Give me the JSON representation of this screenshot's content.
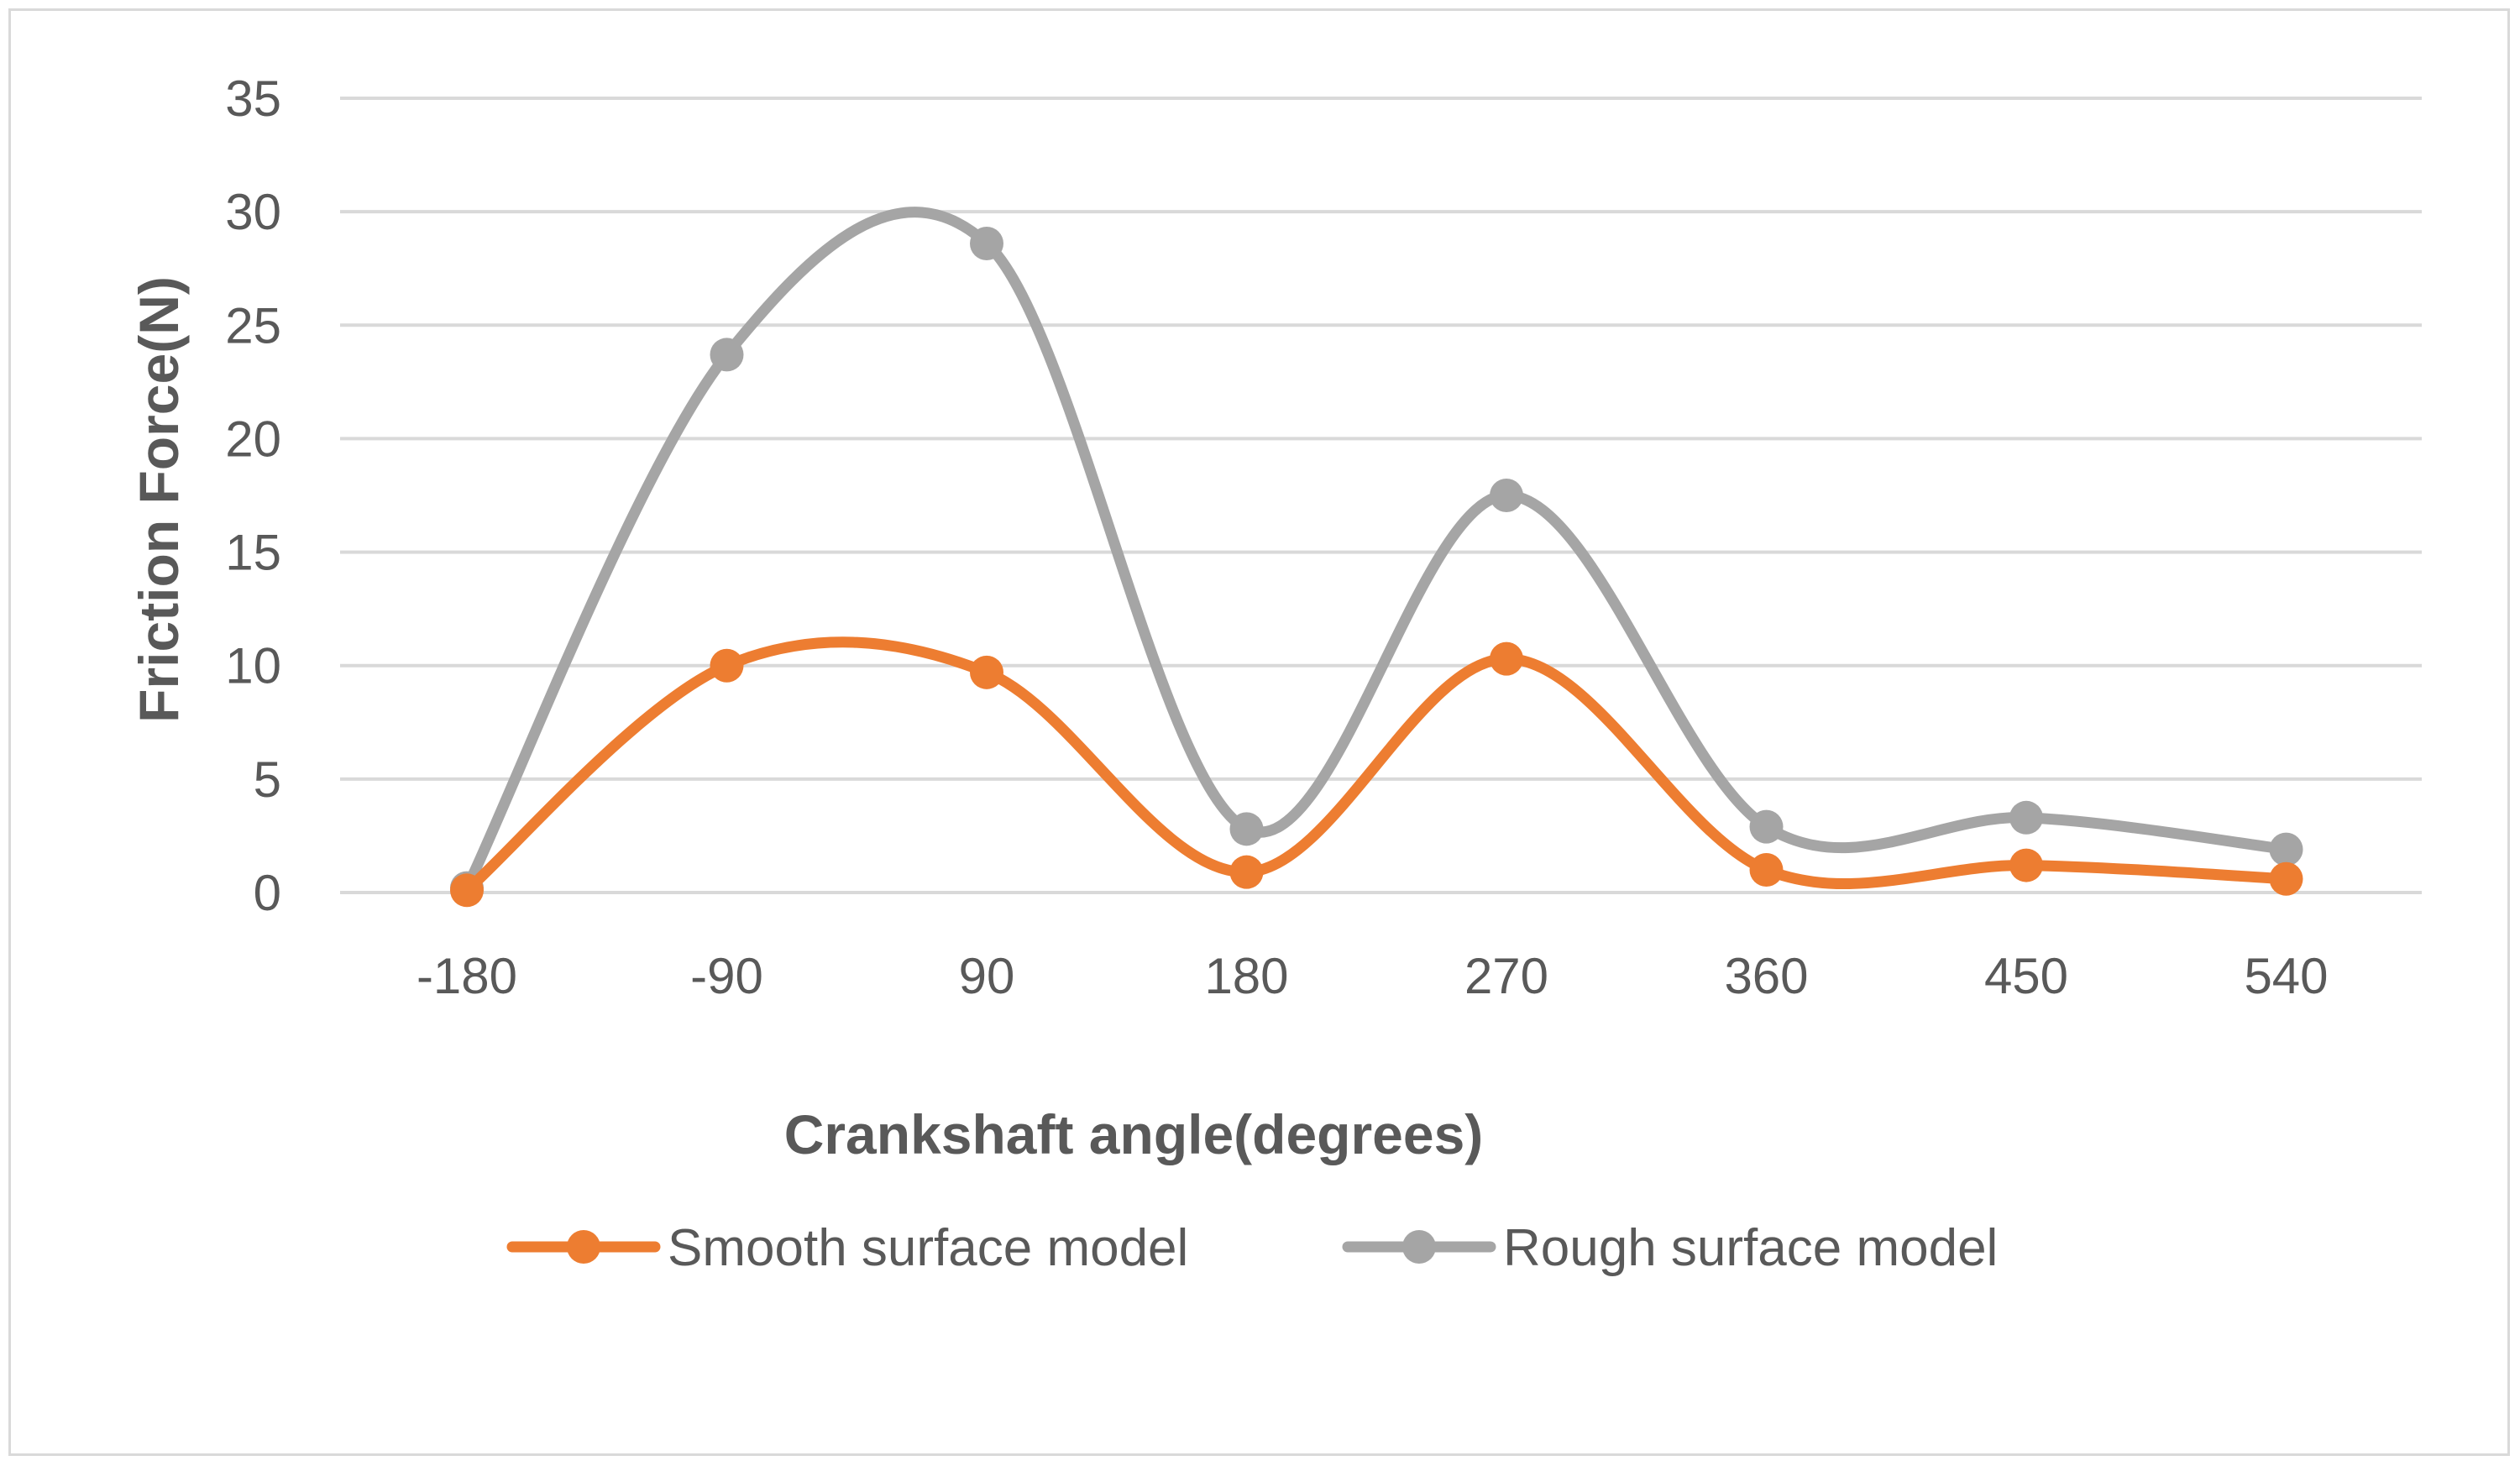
{
  "chart_data": {
    "type": "line",
    "smooth": true,
    "title": "",
    "xlabel": "Crankshaft angle(degrees)",
    "ylabel": "Friction Force(N)",
    "categories": [
      "-180",
      "-90",
      "90",
      "180",
      "270",
      "360",
      "450",
      "540"
    ],
    "ylim": [
      0,
      35
    ],
    "yticks": [
      "0",
      "5",
      "10",
      "15",
      "20",
      "25",
      "30",
      "35"
    ],
    "grid": true,
    "legend_position": "bottom",
    "series": [
      {
        "name": "Smooth surface model",
        "color": "#ed7d31",
        "values": [
          0.1,
          10,
          9.7,
          0.9,
          10.3,
          1.0,
          1.2,
          0.6
        ]
      },
      {
        "name": "Rough surface model",
        "color": "#a5a5a5",
        "values": [
          0.2,
          23.7,
          28.6,
          2.8,
          17.5,
          2.9,
          3.3,
          1.9
        ]
      }
    ]
  }
}
